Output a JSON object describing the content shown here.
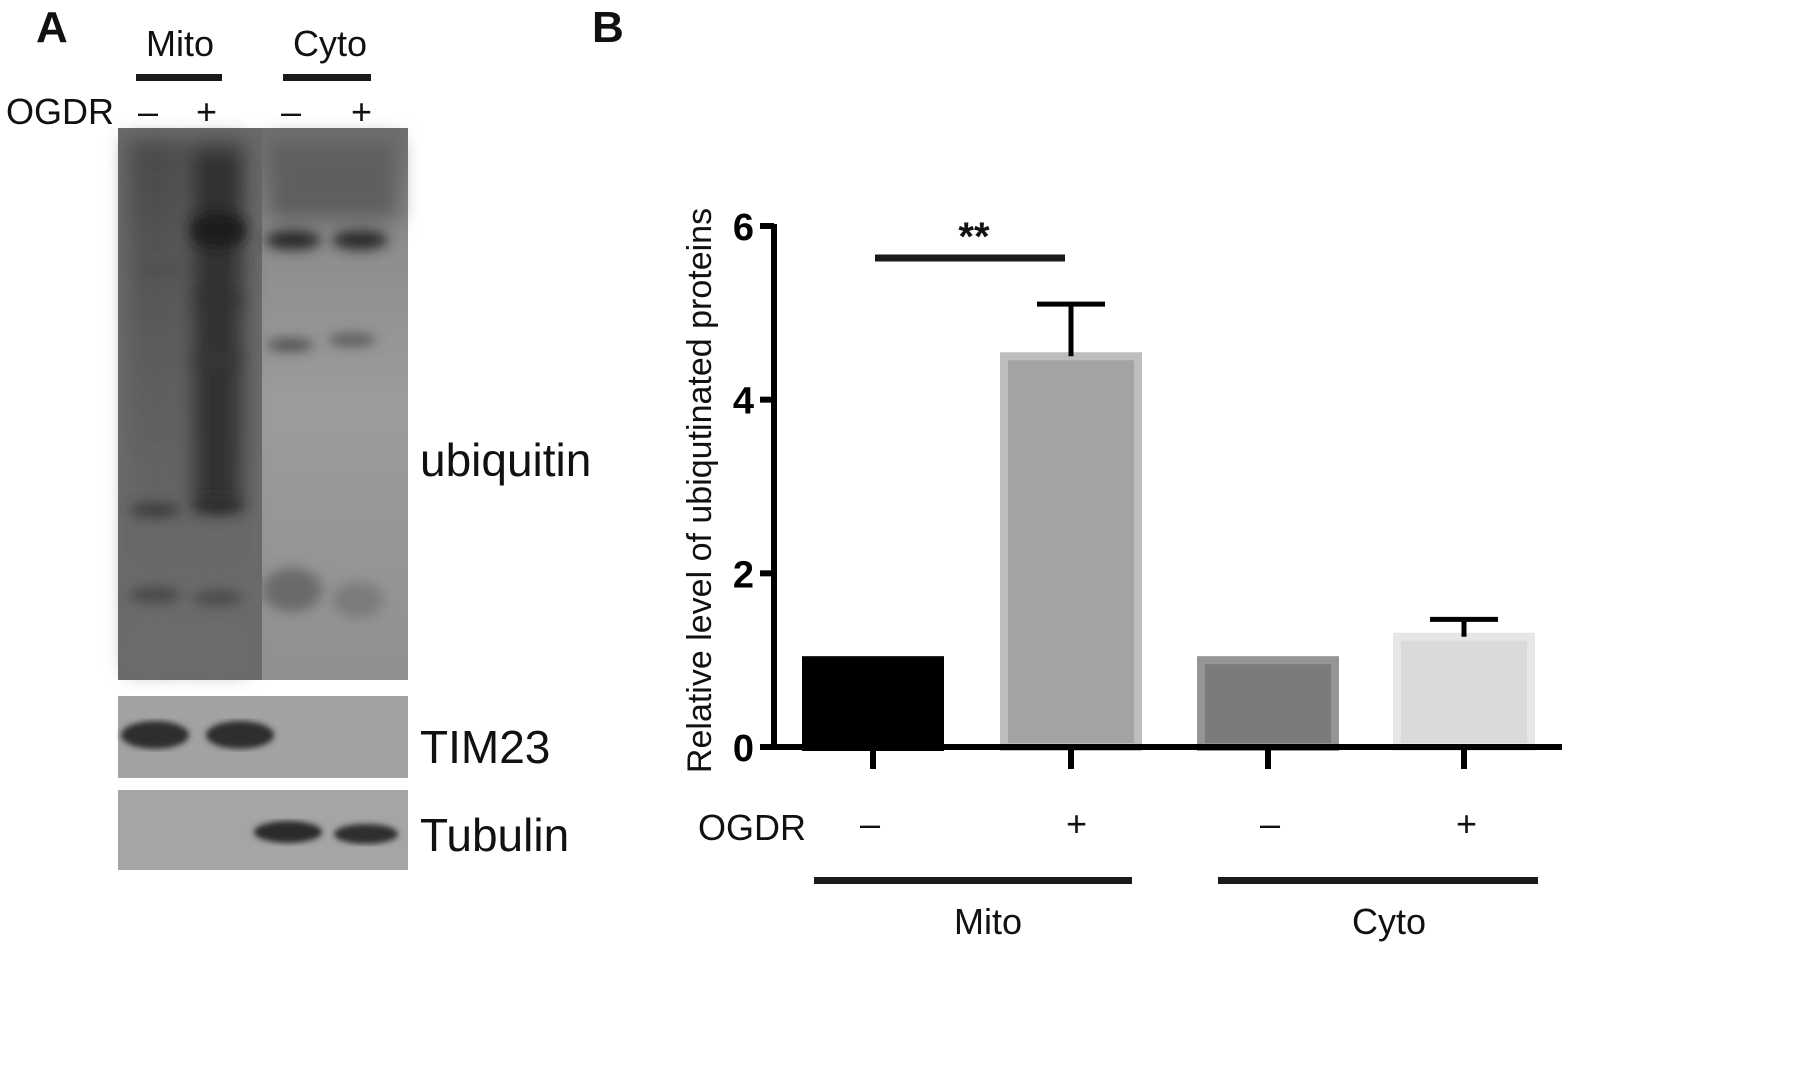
{
  "panel_a": {
    "letter": "A",
    "groups": [
      "Mito",
      "Cyto"
    ],
    "row_label": "OGDR",
    "signs": [
      "–",
      "+",
      "–",
      "+"
    ],
    "blot_labels": {
      "ubiquitin": "ubiquitin",
      "tim23": "TIM23",
      "tubulin": "Tubulin"
    }
  },
  "panel_b": {
    "letter": "B",
    "row_label": "OGDR",
    "signs": [
      "–",
      "+",
      "–",
      "+"
    ],
    "groups": [
      "Mito",
      "Cyto"
    ]
  },
  "chart_data": {
    "type": "bar",
    "title": "",
    "xlabel": "",
    "ylabel": "Relative level of  ubiqutinated proteins",
    "ylim": [
      0,
      6
    ],
    "yticks": [
      0,
      2,
      4,
      6
    ],
    "categories": [
      "Mito –",
      "Mito +",
      "Cyto –",
      "Cyto +"
    ],
    "values": [
      1.0,
      4.5,
      1.0,
      1.27
    ],
    "errors": [
      0,
      0.6,
      0,
      0.2
    ],
    "bar_colors": [
      "#000000",
      "#a3a3a6",
      "#7b7b7b",
      "#dadada"
    ],
    "bar_edge_colors": [
      "#000000",
      "#bdbdbd",
      "#959595",
      "#e6e6e6"
    ],
    "annotations": [
      {
        "text": "**",
        "between": [
          "Mito –",
          "Mito +"
        ]
      }
    ],
    "grid": false,
    "legend": "none"
  }
}
